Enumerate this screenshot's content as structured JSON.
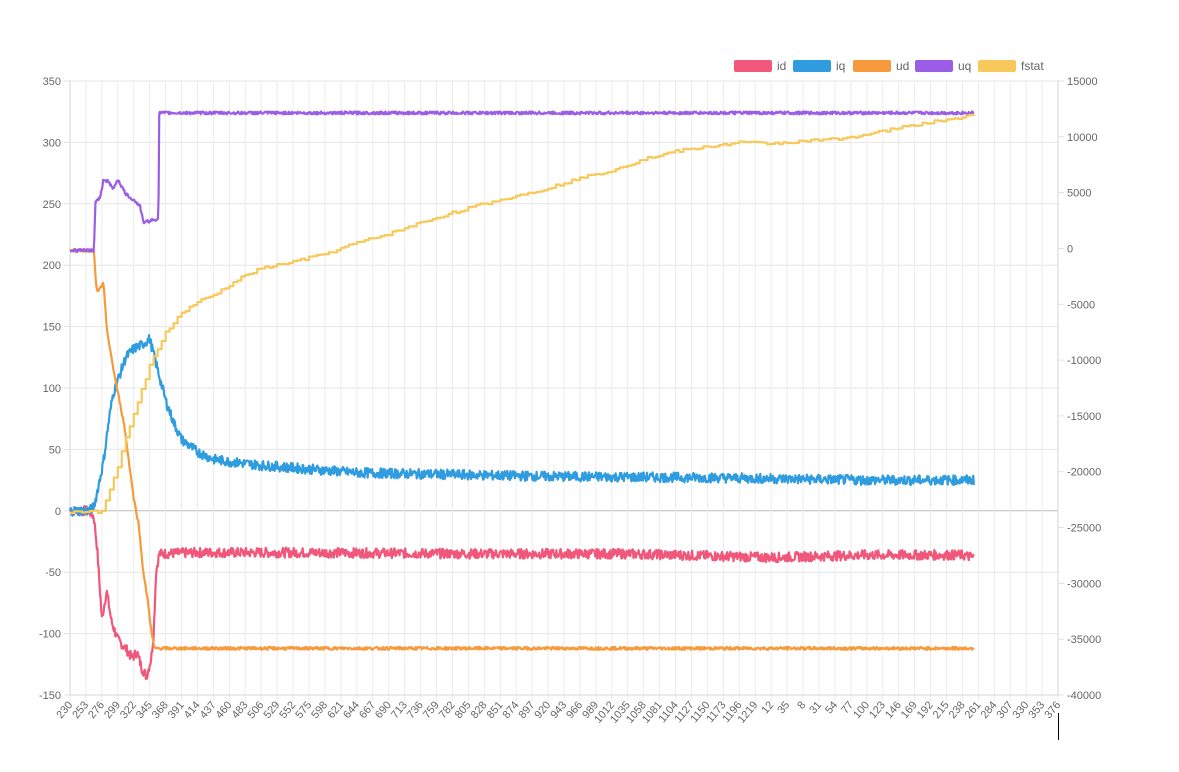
{
  "chart_data": {
    "type": "line",
    "title": "",
    "xlabel": "",
    "ylabel": "",
    "ylim": [
      -150,
      350
    ],
    "y2lim": [
      -40000,
      15000
    ],
    "y_ticks": [
      350,
      300,
      250,
      200,
      150,
      100,
      50,
      0,
      -50,
      -100,
      -150
    ],
    "y2_ticks": [
      15000,
      10000,
      5000,
      0,
      -5000,
      -10000,
      -15000,
      -20000,
      -25000,
      -30000,
      -35000,
      -40000
    ],
    "x_ticks": [
      "230",
      "253",
      "276",
      "299",
      "322",
      "345",
      "368",
      "391",
      "414",
      "437",
      "460",
      "483",
      "506",
      "529",
      "552",
      "575",
      "598",
      "621",
      "644",
      "667",
      "690",
      "713",
      "736",
      "759",
      "782",
      "805",
      "828",
      "851",
      "874",
      "897",
      "920",
      "943",
      "966",
      "989",
      "1012",
      "1035",
      "1058",
      "1081",
      "1104",
      "1127",
      "1150",
      "1173",
      "1196",
      "1219",
      "12",
      "35",
      "8",
      "31",
      "54",
      "77",
      "100",
      "123",
      "146",
      "169",
      "192",
      "215",
      "238",
      "261",
      "284",
      "307",
      "330",
      "353",
      "376"
    ],
    "legend_position": "top-right",
    "grid": true,
    "series": [
      {
        "name": "id",
        "color": "#f0577a",
        "axis": "left",
        "noise": 4,
        "points": [
          [
            0,
            0
          ],
          [
            1.2,
            0
          ],
          [
            1.5,
            -5
          ],
          [
            1.7,
            -30
          ],
          [
            2,
            -88
          ],
          [
            2.3,
            -65
          ],
          [
            2.6,
            -90
          ],
          [
            3,
            -105
          ],
          [
            3.5,
            -112
          ],
          [
            3.9,
            -120
          ],
          [
            4.2,
            -115
          ],
          [
            4.5,
            -128
          ],
          [
            4.8,
            -135
          ],
          [
            5.1,
            -120
          ],
          [
            5.25,
            -100
          ],
          [
            5.4,
            -50
          ],
          [
            5.6,
            -35
          ],
          [
            8,
            -34
          ],
          [
            15,
            -34
          ],
          [
            25,
            -35
          ],
          [
            35,
            -35
          ],
          [
            41,
            -37
          ],
          [
            44,
            -38
          ],
          [
            50,
            -36
          ],
          [
            56,
            -36
          ],
          [
            56.7,
            -38
          ]
        ]
      },
      {
        "name": "iq",
        "color": "#2f9ce0",
        "axis": "left",
        "noise": 4,
        "points": [
          [
            0,
            0
          ],
          [
            1.2,
            0
          ],
          [
            1.5,
            3
          ],
          [
            1.7,
            15
          ],
          [
            2.1,
            40
          ],
          [
            2.4,
            70
          ],
          [
            2.7,
            95
          ],
          [
            3.1,
            110
          ],
          [
            3.5,
            125
          ],
          [
            4,
            132
          ],
          [
            4.5,
            135
          ],
          [
            5,
            140
          ],
          [
            5.3,
            125
          ],
          [
            5.6,
            110
          ],
          [
            6,
            90
          ],
          [
            6.5,
            72
          ],
          [
            7,
            58
          ],
          [
            8,
            48
          ],
          [
            9,
            42
          ],
          [
            10,
            40
          ],
          [
            12,
            37
          ],
          [
            15,
            34
          ],
          [
            18,
            31
          ],
          [
            22,
            30
          ],
          [
            30,
            28
          ],
          [
            40,
            27
          ],
          [
            45,
            26
          ],
          [
            50,
            25
          ],
          [
            56,
            25
          ],
          [
            56.7,
            25
          ]
        ]
      },
      {
        "name": "ud",
        "color": "#f79a3c",
        "axis": "left",
        "noise": 1.2,
        "points": [
          [
            0,
            212
          ],
          [
            1.5,
            212
          ],
          [
            1.6,
            190
          ],
          [
            1.7,
            178
          ],
          [
            2.1,
            185
          ],
          [
            2.3,
            150
          ],
          [
            2.5,
            132
          ],
          [
            2.8,
            110
          ],
          [
            3.1,
            90
          ],
          [
            3.4,
            70
          ],
          [
            3.7,
            40
          ],
          [
            4,
            10
          ],
          [
            4.3,
            -10
          ],
          [
            4.6,
            -50
          ],
          [
            4.9,
            -75
          ],
          [
            5.1,
            -98
          ],
          [
            5.3,
            -112
          ],
          [
            56.7,
            -112
          ]
        ]
      },
      {
        "name": "uq",
        "color": "#9b5de5",
        "axis": "left",
        "noise": 1.2,
        "points": [
          [
            0,
            212
          ],
          [
            1.5,
            212
          ],
          [
            1.6,
            252
          ],
          [
            1.9,
            255
          ],
          [
            2.1,
            270
          ],
          [
            2.4,
            268
          ],
          [
            2.7,
            262
          ],
          [
            3.0,
            270
          ],
          [
            3.2,
            265
          ],
          [
            3.5,
            258
          ],
          [
            3.8,
            255
          ],
          [
            4.1,
            252
          ],
          [
            4.4,
            248
          ],
          [
            4.6,
            235
          ],
          [
            5.0,
            236
          ],
          [
            5.55,
            238
          ],
          [
            5.6,
            324
          ],
          [
            56.7,
            324
          ]
        ]
      },
      {
        "name": "fstat",
        "color": "#f7c95a",
        "axis": "right",
        "noise": 0,
        "points": [
          [
            0,
            -23600
          ],
          [
            2,
            -23600
          ],
          [
            2.5,
            -21500
          ],
          [
            3,
            -19500
          ],
          [
            3.5,
            -17000
          ],
          [
            4.2,
            -14000
          ],
          [
            5,
            -10500
          ],
          [
            6,
            -7500
          ],
          [
            7,
            -5800
          ],
          [
            8,
            -4800
          ],
          [
            9,
            -4200
          ],
          [
            10,
            -3300
          ],
          [
            11,
            -2400
          ],
          [
            12,
            -1800
          ],
          [
            14,
            -1200
          ],
          [
            16,
            -500
          ],
          [
            18,
            500
          ],
          [
            20,
            1300
          ],
          [
            22,
            2300
          ],
          [
            24,
            3200
          ],
          [
            26,
            4000
          ],
          [
            28,
            4700
          ],
          [
            30,
            5400
          ],
          [
            32,
            6300
          ],
          [
            34,
            7000
          ],
          [
            36,
            8000
          ],
          [
            38,
            8700
          ],
          [
            40,
            9100
          ],
          [
            42,
            9500
          ],
          [
            44,
            9400
          ],
          [
            46,
            9600
          ],
          [
            48,
            9800
          ],
          [
            50,
            10200
          ],
          [
            52,
            10800
          ],
          [
            54,
            11300
          ],
          [
            56.7,
            11900
          ]
        ]
      }
    ]
  }
}
